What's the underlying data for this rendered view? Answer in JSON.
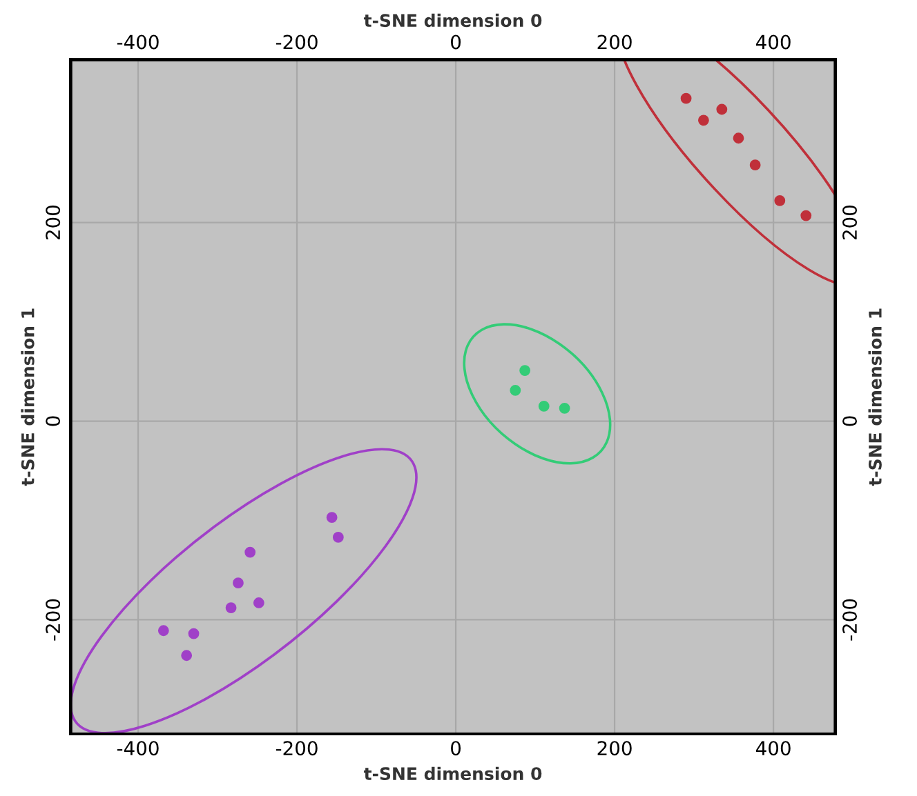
{
  "chart_data": {
    "type": "scatter",
    "xlabel": "t-SNE dimension 0",
    "x2label": "t-SNE dimension 0",
    "ylabel": "t-SNE dimension 1",
    "y2label": "t-SNE dimension 1",
    "xlim": [
      -485,
      478
    ],
    "xticks": [
      -400,
      -200,
      0,
      200,
      400
    ],
    "x2lim": [
      -485,
      478
    ],
    "x2ticks": [
      -400,
      -200,
      0,
      200,
      400
    ],
    "ylim": [
      -315,
      364
    ],
    "yticks": [
      -200,
      0,
      200
    ],
    "y2lim": [
      -315,
      364
    ],
    "y2ticks": [
      -200,
      0,
      200
    ],
    "grid": true,
    "marker": "circle",
    "series": [
      {
        "color": "#c0303a",
        "x": [
          290,
          335,
          312,
          356,
          377,
          408,
          441
        ],
        "values": [
          325,
          314,
          303,
          285,
          258,
          222,
          207
        ]
      },
      {
        "color": "#33cc77",
        "x": [
          87,
          75,
          111,
          137
        ],
        "values": [
          51,
          31,
          15,
          13
        ]
      },
      {
        "color": "#a040c8",
        "x": [
          -156,
          -148,
          -259,
          -274,
          -248,
          -283,
          -368,
          -330,
          -339
        ],
        "values": [
          -97,
          -117,
          -132,
          -163,
          -183,
          -188,
          -211,
          -214,
          -236
        ]
      }
    ]
  }
}
